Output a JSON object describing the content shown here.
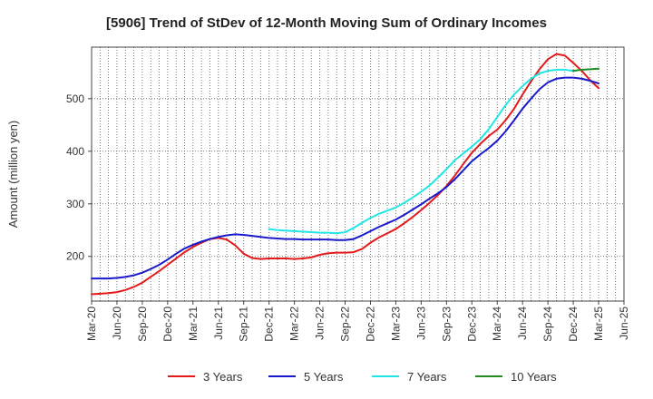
{
  "chart_data": {
    "type": "line",
    "title": "[5906]  Trend of StDev of 12-Month Moving Sum of Ordinary Incomes",
    "xlabel": "",
    "ylabel": "Amount (million yen)",
    "ylim": [
      115,
      598
    ],
    "yticks": [
      200,
      300,
      400,
      500
    ],
    "xlim": [
      0,
      63
    ],
    "x_tick_labels": [
      "Mar-20",
      "Jun-20",
      "Sep-20",
      "Dec-20",
      "Mar-21",
      "Jun-21",
      "Sep-21",
      "Dec-21",
      "Mar-22",
      "Jun-22",
      "Sep-22",
      "Dec-22",
      "Mar-23",
      "Jun-23",
      "Sep-23",
      "Dec-23",
      "Mar-24",
      "Jun-24",
      "Sep-24",
      "Dec-24",
      "Mar-25",
      "Jun-25"
    ],
    "x_tick_interval_months": 3,
    "grid": true,
    "legend_position": "bottom",
    "series": [
      {
        "name": "3 Years",
        "color": "#e31a1c",
        "start_index": 0,
        "values": [
          128,
          129,
          130,
          132,
          136,
          142,
          150,
          161,
          172,
          184,
          196,
          208,
          218,
          226,
          233,
          235,
          232,
          221,
          205,
          197,
          195,
          196,
          196,
          196,
          195,
          196,
          198,
          203,
          206,
          207,
          207,
          208,
          214,
          226,
          236,
          244,
          252,
          263,
          275,
          288,
          302,
          317,
          334,
          354,
          376,
          397,
          414,
          429,
          441,
          459,
          481,
          508,
          533,
          556,
          575,
          585,
          582,
          568,
          553,
          535,
          520
        ]
      },
      {
        "name": "5 Years",
        "color": "#1a1acc",
        "start_index": 0,
        "values": [
          158,
          158,
          158,
          159,
          161,
          164,
          169,
          176,
          184,
          194,
          205,
          215,
          222,
          228,
          233,
          237,
          240,
          242,
          241,
          239,
          237,
          235,
          234,
          233,
          233,
          232,
          232,
          232,
          232,
          231,
          231,
          233,
          240,
          248,
          256,
          263,
          270,
          279,
          289,
          299,
          310,
          320,
          332,
          347,
          364,
          381,
          394,
          406,
          420,
          438,
          459,
          481,
          500,
          518,
          531,
          538,
          540,
          540,
          538,
          534,
          529
        ]
      },
      {
        "name": "7 Years",
        "color": "#22e6e6",
        "start_index": 21,
        "values": [
          252,
          250,
          249,
          248,
          247,
          246,
          245,
          245,
          244,
          246,
          254,
          264,
          273,
          281,
          287,
          293,
          302,
          312,
          323,
          335,
          350,
          366,
          383,
          396,
          409,
          423,
          442,
          465,
          488,
          508,
          524,
          538,
          548,
          553,
          555,
          555,
          553
        ]
      },
      {
        "name": "10 Years",
        "color": "#228b22",
        "start_index": 57,
        "values": [
          553,
          555,
          556,
          557
        ]
      }
    ]
  }
}
